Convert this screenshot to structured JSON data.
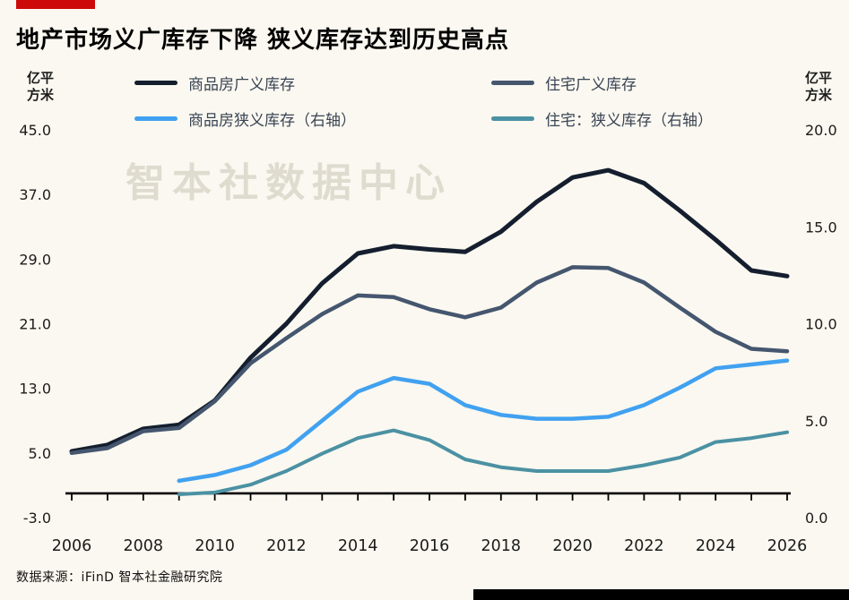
{
  "header": {
    "accent_color": "#cd0a0a"
  },
  "footer": {
    "source": "数据来源：iFinD 智本社金融研究院"
  },
  "chart_data": {
    "type": "line",
    "title": "地产市场义广库存下降 狭义库存达到历史高点",
    "watermark": "智本社数据中心",
    "x": [
      2006,
      2007,
      2008,
      2009,
      2010,
      2011,
      2012,
      2013,
      2014,
      2015,
      2016,
      2017,
      2018,
      2019,
      2020,
      2021,
      2022,
      2023,
      2024,
      2025,
      2026
    ],
    "x_tick_labels": [
      2006,
      2008,
      2010,
      2012,
      2014,
      2016,
      2018,
      2020,
      2022,
      2024,
      2026
    ],
    "left_axis": {
      "unit_line1": "亿平",
      "unit_line2": "方米",
      "min": -3,
      "max": 45,
      "ticks": [
        45.0,
        37.0,
        29.0,
        21.0,
        13.0,
        5.0,
        -3.0
      ]
    },
    "right_axis": {
      "unit_line1": "亿平",
      "unit_line2": "方米",
      "min": 0,
      "max": 20,
      "ticks": [
        20.0,
        15.0,
        10.0,
        5.0,
        0.0
      ]
    },
    "zero_line_value": 0,
    "grid": false,
    "legend_position": "top",
    "series": [
      {
        "name": "商品房广义库存",
        "axis": "left",
        "color": "#141e2e",
        "width": 5,
        "values": [
          5.2,
          6.0,
          8.0,
          8.5,
          11.5,
          16.8,
          21.0,
          26.0,
          29.7,
          30.6,
          30.2,
          29.9,
          32.4,
          36.1,
          39.1,
          40.0,
          38.4,
          35.0,
          31.4,
          27.6,
          26.9
        ]
      },
      {
        "name": "住宅广义库存",
        "axis": "left",
        "color": "#45566f",
        "width": 4.5,
        "values": [
          5.0,
          5.6,
          7.7,
          8.1,
          11.4,
          16.1,
          19.2,
          22.2,
          24.5,
          24.3,
          22.8,
          21.8,
          23.0,
          26.1,
          28.0,
          27.9,
          26.1,
          23.0,
          20.0,
          17.9,
          17.6
        ]
      },
      {
        "name": "商品房狭义库存（右轴）",
        "axis": "right",
        "color": "#41a1f0",
        "width": 4.5,
        "values": [
          null,
          null,
          null,
          1.9,
          2.2,
          2.7,
          3.5,
          5.0,
          6.5,
          7.2,
          6.9,
          5.8,
          5.3,
          5.1,
          5.1,
          5.2,
          5.8,
          6.7,
          7.7,
          7.9,
          8.1
        ]
      },
      {
        "name": "住宅：狭义库存（右轴）",
        "axis": "right",
        "color": "#4b91a3",
        "width": 4,
        "values": [
          null,
          null,
          null,
          1.2,
          1.3,
          1.7,
          2.4,
          3.3,
          4.1,
          4.5,
          4.0,
          3.0,
          2.6,
          2.4,
          2.4,
          2.4,
          2.7,
          3.1,
          3.9,
          4.1,
          4.4
        ]
      }
    ]
  }
}
